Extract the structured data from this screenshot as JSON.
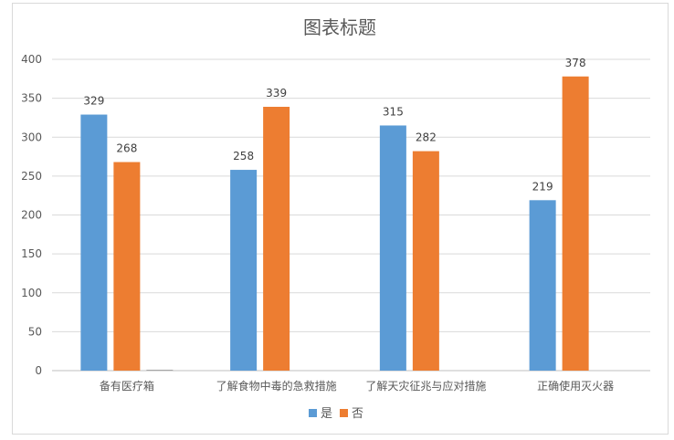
{
  "chart_data": {
    "type": "bar",
    "title": "图表标题",
    "categories": [
      "备有医疗箱",
      "了解食物中毒的急救措施",
      "了解天灾征兆与应对措施",
      "正确使用灭火器"
    ],
    "series": [
      {
        "name": "是",
        "color": "#5b9bd5",
        "values": [
          329,
          258,
          315,
          219
        ]
      },
      {
        "name": "否",
        "color": "#ed7d31",
        "values": [
          268,
          339,
          282,
          378
        ]
      },
      {
        "name": "",
        "color": "#a5a5a5",
        "values": [
          1,
          null,
          null,
          null
        ]
      }
    ],
    "ylim": [
      0,
      400
    ],
    "yticks": [
      0,
      50,
      100,
      150,
      200,
      250,
      300,
      350,
      400
    ],
    "grid": true,
    "legend_position": "bottom",
    "data_labels": true
  }
}
